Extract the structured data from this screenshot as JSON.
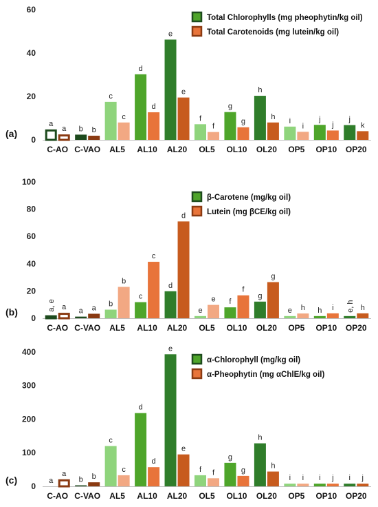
{
  "chart_data": [
    {
      "type": "bar",
      "panel_label": "(a)",
      "categories": [
        "C-AO",
        "C-VAO",
        "AL5",
        "AL10",
        "AL20",
        "OL5",
        "OL10",
        "OL20",
        "OP5",
        "OP10",
        "OP20"
      ],
      "y_ticks": [
        "0",
        "20",
        "40",
        "60"
      ],
      "ylim": [
        0,
        60
      ],
      "series": [
        {
          "name": "Total Chlorophylls (mg pheophytin/kg oil)",
          "values": [
            4.8,
            2.4,
            17.5,
            30.2,
            46.2,
            7.2,
            12.8,
            20.3,
            6.1,
            6.9,
            6.8
          ],
          "letters": [
            "a",
            "b",
            "c",
            "d",
            "e",
            "f",
            "g",
            "h",
            "i",
            "j",
            "j"
          ]
        },
        {
          "name": "Total Carotenoids (mg lutein/kg oil)",
          "values": [
            2.5,
            1.9,
            8.0,
            12.7,
            19.5,
            3.6,
            5.8,
            8.0,
            3.7,
            4.3,
            4.0
          ],
          "letters": [
            "a",
            "b",
            "c",
            "d",
            "e",
            "f",
            "g",
            "h",
            "i",
            "j",
            "k"
          ]
        }
      ],
      "legend_position": "top-right",
      "grid": false
    },
    {
      "type": "bar",
      "panel_label": "(b)",
      "categories": [
        "C-AO",
        "C-VAO",
        "AL5",
        "AL10",
        "AL20",
        "OL5",
        "OL10",
        "OL20",
        "OP5",
        "OP10",
        "OP20"
      ],
      "y_ticks": [
        "0",
        "20",
        "40",
        "60",
        "80",
        "100"
      ],
      "ylim": [
        0,
        100
      ],
      "series": [
        {
          "name": "β-Carotene (mg/kg oil)",
          "values": [
            2.2,
            1.2,
            6.3,
            11.8,
            19.8,
            1.6,
            8.0,
            12.2,
            1.6,
            1.6,
            1.6
          ],
          "letters": [
            "a, e",
            "a",
            "b",
            "c",
            "d",
            "e",
            "f",
            "g",
            "e",
            "h",
            "e, h"
          ]
        },
        {
          "name": "Lutein (mg βCE/kg oil)",
          "values": [
            4.0,
            3.3,
            23.0,
            41.4,
            71.0,
            9.8,
            16.8,
            26.5,
            3.5,
            3.6,
            3.6
          ],
          "letters": [
            "a",
            "a",
            "b",
            "c",
            "d",
            "e",
            "f",
            "g",
            "h",
            "i",
            "h"
          ]
        }
      ],
      "legend_position": "top-right",
      "grid": false
    },
    {
      "type": "bar",
      "panel_label": "(c)",
      "categories": [
        "C-AO",
        "C-VAO",
        "AL5",
        "AL10",
        "AL20",
        "OL5",
        "OL10",
        "OL20",
        "OP5",
        "OP10",
        "OP20"
      ],
      "y_ticks": [
        "0",
        "100",
        "200",
        "300",
        "400"
      ],
      "ylim": [
        0,
        410
      ],
      "series": [
        {
          "name": "α-Chlorophyll (mg/kg oil)",
          "values": [
            0,
            3,
            120,
            218,
            393,
            33,
            70,
            128,
            8,
            8,
            8
          ],
          "letters": [
            "a",
            "b",
            "c",
            "d",
            "e",
            "f",
            "g",
            "h",
            "i",
            "i",
            "i"
          ]
        },
        {
          "name": "α-Pheophytin (mg αChlE/kg oil)",
          "values": [
            21,
            12,
            33,
            57,
            95,
            24,
            31,
            44,
            8,
            8,
            8
          ],
          "letters": [
            "a",
            "b",
            "c",
            "d",
            "e",
            "f",
            "g",
            "h",
            "i",
            "j",
            "j"
          ]
        }
      ],
      "legend_position": "top-right",
      "grid": false
    }
  ],
  "colors": {
    "green_dark": "#1d4a1d",
    "green_mid": "#4ea52a",
    "green_deep": "#2f7d2a",
    "green_light": "#8fd47c",
    "orange_dark": "#8a3a12",
    "orange_mid": "#e8743a",
    "orange_deep": "#c75b1e",
    "orange_light": "#f2a883"
  }
}
